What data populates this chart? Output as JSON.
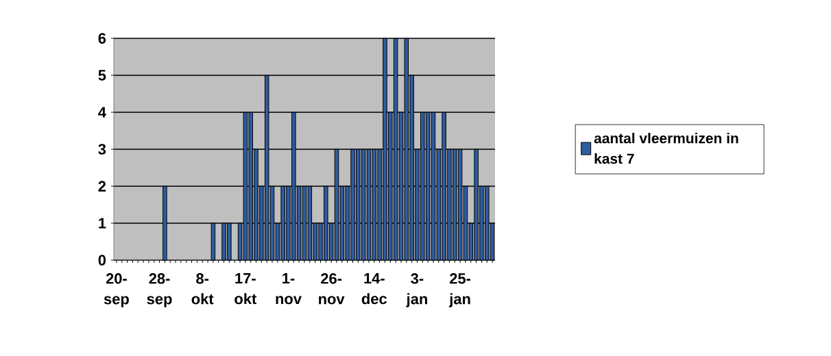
{
  "chart_data": {
    "type": "bar",
    "categories": [
      "20-sep",
      null,
      null,
      null,
      null,
      null,
      null,
      null,
      "28-sep",
      null,
      null,
      null,
      null,
      null,
      null,
      null,
      "8-okt",
      null,
      null,
      null,
      null,
      null,
      null,
      null,
      "17-okt",
      null,
      null,
      null,
      null,
      null,
      null,
      null,
      "1-nov",
      null,
      null,
      null,
      null,
      null,
      null,
      null,
      "26-nov",
      null,
      null,
      null,
      null,
      null,
      null,
      null,
      "14-dec",
      null,
      null,
      null,
      null,
      null,
      null,
      null,
      "3-jan",
      null,
      null,
      null,
      null,
      null,
      null,
      null,
      "25-jan",
      null,
      null,
      null,
      null,
      null,
      null
    ],
    "series": [
      {
        "name": "aantal vleermuizen in kast 7",
        "color": "#2e5c9e",
        "values": [
          0,
          0,
          0,
          0,
          0,
          0,
          0,
          0,
          0,
          2,
          0,
          0,
          0,
          0,
          0,
          0,
          0,
          0,
          1,
          0,
          1,
          1,
          0,
          1,
          4,
          4,
          3,
          2,
          5,
          2,
          1,
          2,
          2,
          4,
          2,
          2,
          2,
          1,
          1,
          2,
          1,
          3,
          2,
          2,
          3,
          3,
          3,
          3,
          3,
          3,
          6,
          4,
          6,
          4,
          6,
          5,
          3,
          4,
          4,
          4,
          3,
          4,
          3,
          3,
          3,
          2,
          1,
          3,
          2,
          2,
          1
        ]
      }
    ],
    "ylim": [
      0,
      6
    ],
    "yticks": [
      0,
      1,
      2,
      3,
      4,
      5,
      6
    ],
    "grid": "y",
    "legend": "right"
  }
}
